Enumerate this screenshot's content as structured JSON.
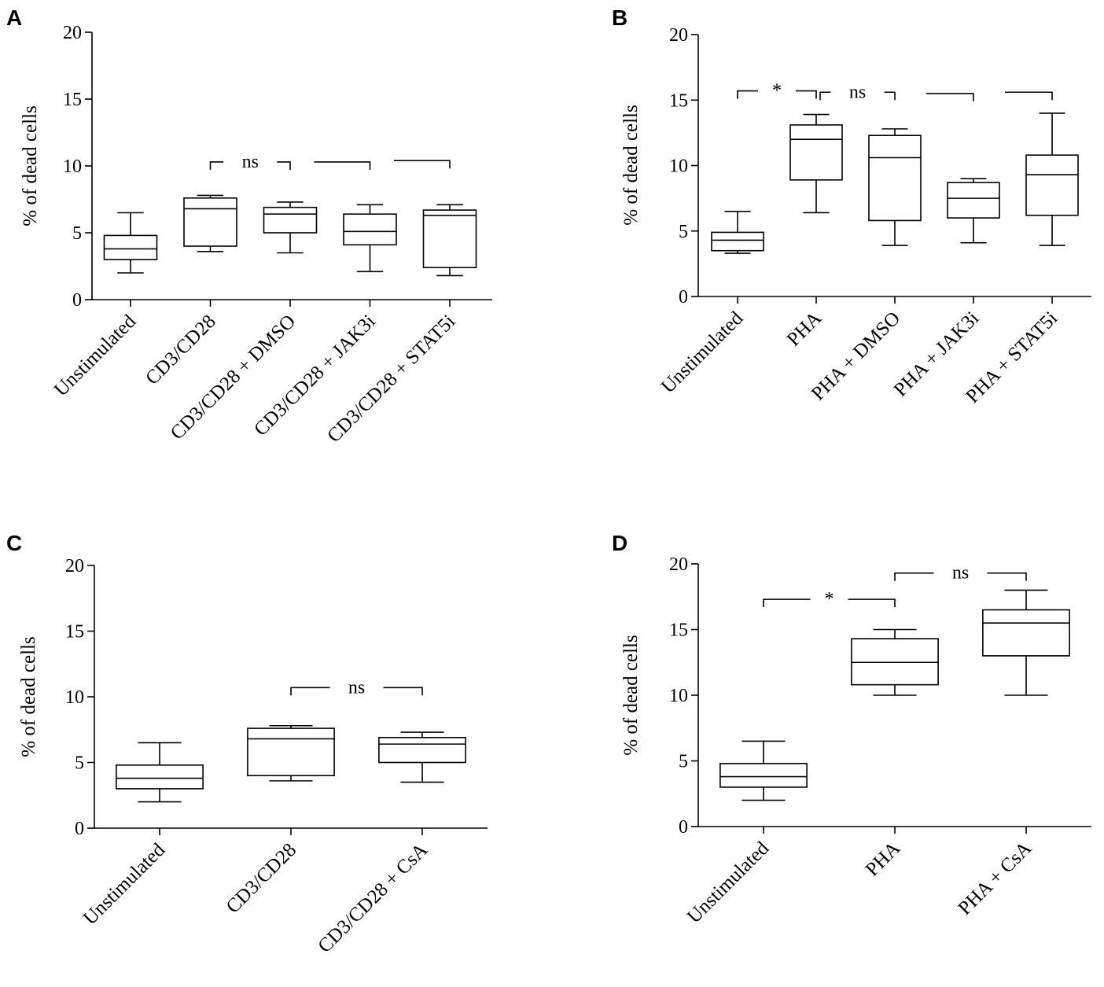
{
  "chart_data": [
    {
      "type": "box",
      "panel": "A",
      "ylabel": "% of dead cells",
      "ylim": [
        0,
        20
      ],
      "yticks": [
        "0",
        "5",
        "10",
        "15",
        "20"
      ],
      "categories": [
        "Unstimulated",
        "CD3/CD28",
        "CD3/CD28 + DMSO",
        "CD3/CD28 + JAK3i",
        "CD3/CD28 + STAT5i"
      ],
      "boxes": [
        {
          "min": 2.0,
          "q1": 3.0,
          "median": 3.8,
          "q3": 4.8,
          "max": 6.5
        },
        {
          "min": 3.6,
          "q1": 4.0,
          "median": 6.8,
          "q3": 7.6,
          "max": 7.8
        },
        {
          "min": 3.5,
          "q1": 5.0,
          "median": 6.4,
          "q3": 6.9,
          "max": 7.3
        },
        {
          "min": 2.1,
          "q1": 4.1,
          "median": 5.1,
          "q3": 6.4,
          "max": 7.1
        },
        {
          "min": 1.8,
          "q1": 2.4,
          "median": 6.3,
          "q3": 6.7,
          "max": 7.1
        }
      ],
      "brackets": [
        {
          "from": 1,
          "to": 2,
          "y": 10.3,
          "label": "ns"
        },
        {
          "from": 2.3,
          "to": 3,
          "y": 10.3,
          "label": ""
        },
        {
          "from": 3.3,
          "to": 4,
          "y": 10.4,
          "label": ""
        }
      ]
    },
    {
      "type": "box",
      "panel": "B",
      "ylabel": "% of dead cells",
      "ylim": [
        0,
        20
      ],
      "yticks": [
        "0",
        "5",
        "10",
        "15",
        "20"
      ],
      "categories": [
        "Unstimulated",
        "PHA",
        "PHA + DMSO",
        "PHA + JAK3i",
        "PHA + STAT5i"
      ],
      "boxes": [
        {
          "min": 3.3,
          "q1": 3.5,
          "median": 4.3,
          "q3": 4.9,
          "max": 6.5
        },
        {
          "min": 6.4,
          "q1": 8.9,
          "median": 12.0,
          "q3": 13.1,
          "max": 13.9
        },
        {
          "min": 3.9,
          "q1": 5.8,
          "median": 10.6,
          "q3": 12.3,
          "max": 12.8
        },
        {
          "min": 4.1,
          "q1": 6.0,
          "median": 7.5,
          "q3": 8.7,
          "max": 9.0
        },
        {
          "min": 3.9,
          "q1": 6.2,
          "median": 9.3,
          "q3": 10.8,
          "max": 14.0
        }
      ],
      "brackets": [
        {
          "from": 0,
          "to": 1,
          "y": 15.7,
          "label": "*"
        },
        {
          "from": 1.05,
          "to": 2,
          "y": 15.6,
          "label": "ns"
        },
        {
          "from": 2.4,
          "to": 3,
          "y": 15.5,
          "label": ""
        },
        {
          "from": 3.4,
          "to": 4,
          "y": 15.6,
          "label": ""
        }
      ]
    },
    {
      "type": "box",
      "panel": "C",
      "ylabel": "% of dead cells",
      "ylim": [
        0,
        20
      ],
      "yticks": [
        "0",
        "5",
        "10",
        "15",
        "20"
      ],
      "categories": [
        "Unstimulated",
        "CD3/CD28",
        "CD3/CD28 + CsA"
      ],
      "boxes": [
        {
          "min": 2.0,
          "q1": 3.0,
          "median": 3.8,
          "q3": 4.8,
          "max": 6.5
        },
        {
          "min": 3.6,
          "q1": 4.0,
          "median": 6.8,
          "q3": 7.6,
          "max": 7.8
        },
        {
          "min": 3.5,
          "q1": 5.0,
          "median": 6.4,
          "q3": 6.9,
          "max": 7.3
        }
      ],
      "brackets": [
        {
          "from": 1,
          "to": 2,
          "y": 10.7,
          "label": "ns"
        }
      ]
    },
    {
      "type": "box",
      "panel": "D",
      "ylabel": "% of dead cells",
      "ylim": [
        0,
        20
      ],
      "yticks": [
        "0",
        "5",
        "10",
        "15",
        "20"
      ],
      "categories": [
        "Unstimulated",
        "PHA",
        "PHA + CsA"
      ],
      "boxes": [
        {
          "min": 2.0,
          "q1": 3.0,
          "median": 3.8,
          "q3": 4.8,
          "max": 6.5
        },
        {
          "min": 10.0,
          "q1": 10.8,
          "median": 12.5,
          "q3": 14.3,
          "max": 15.0
        },
        {
          "min": 10.0,
          "q1": 13.0,
          "median": 15.5,
          "q3": 16.5,
          "max": 18.0
        }
      ],
      "brackets": [
        {
          "from": 0,
          "to": 1,
          "y": 17.3,
          "label": "*"
        },
        {
          "from": 1,
          "to": 2,
          "y": 19.3,
          "label": "ns"
        }
      ]
    }
  ]
}
